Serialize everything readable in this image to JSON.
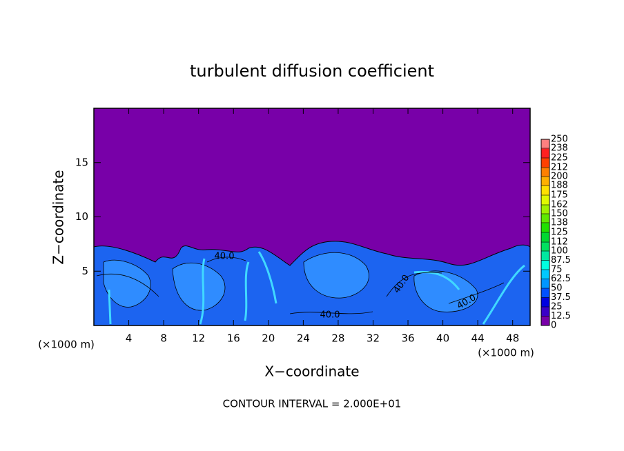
{
  "chart_data": {
    "type": "contour",
    "title": "turbulent diffusion coefficient",
    "xlabel": "X−coordinate",
    "ylabel": "Z−coordinate",
    "xunit": "(×1000 m)",
    "yunit": "(×1000 m)",
    "footnote": "CONTOUR INTERVAL = 2.000E+01",
    "xlim": [
      0,
      50
    ],
    "xticks": [
      4,
      8,
      12,
      16,
      20,
      24,
      28,
      32,
      36,
      40,
      44,
      48
    ],
    "ylim": [
      0,
      20
    ],
    "yticks": [
      5,
      10,
      15
    ],
    "contour_labels": [
      "40.0",
      "40.0",
      "40.0",
      "40.0"
    ],
    "colorbar": {
      "lim": [
        0,
        250
      ],
      "ticks": [
        0,
        12.5,
        25,
        37.5,
        50,
        62.5,
        75,
        87.5,
        100,
        112,
        125,
        138,
        150,
        162,
        175,
        188,
        200,
        212,
        225,
        238,
        250
      ],
      "colors": [
        "#7800a8",
        "#3a00c8",
        "#0000e0",
        "#0050ff",
        "#0096ff",
        "#00c8ff",
        "#00ffe0",
        "#00e8a0",
        "#00e060",
        "#00d830",
        "#20e000",
        "#60e800",
        "#a0f000",
        "#e0f800",
        "#ffe000",
        "#ffb000",
        "#ff8000",
        "#ff4000",
        "#ff2020",
        "#ff8080"
      ]
    }
  }
}
